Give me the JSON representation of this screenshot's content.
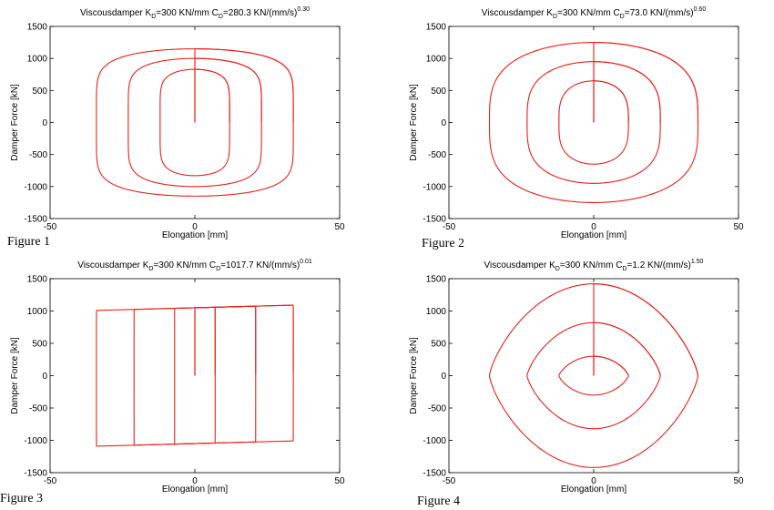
{
  "figures": [
    {
      "caption": "Figure 1"
    },
    {
      "caption": "Figure 2"
    },
    {
      "caption": "Figure 3"
    },
    {
      "caption": "Figure 4"
    }
  ],
  "chart_data": [
    {
      "type": "line",
      "title_parts": {
        "pre": "Viscousdamper K",
        "sub1": "D",
        "mid": "=300 KN/mm C",
        "sub2": "D",
        "post": "=280.3 KN/(mm/s)",
        "sup": "0.30"
      },
      "xlabel": "Elongation [mm]",
      "ylabel": "Damper Force [kN]",
      "xlim": [
        -50,
        50
      ],
      "ylim": [
        -1500,
        1500
      ],
      "xticks": [
        -50,
        0,
        50
      ],
      "yticks": [
        -1500,
        -1000,
        -500,
        0,
        500,
        1000,
        1500
      ],
      "grid": false,
      "color": "#e8201b",
      "loops": [
        {
          "amp": 12,
          "force": 830,
          "p": 0.3
        },
        {
          "amp": 23,
          "force": 1000,
          "p": 0.3
        },
        {
          "amp": 34,
          "force": 1150,
          "p": 0.3
        }
      ]
    },
    {
      "type": "line",
      "title_parts": {
        "pre": "Viscousdamper K",
        "sub1": "D",
        "mid": "=300 KN/mm C",
        "sub2": "D",
        "post": "=73.0 KN/(mm/s)",
        "sup": "0.60"
      },
      "xlabel": "Elongation [mm]",
      "ylabel": "Damper Force [kN]",
      "xlim": [
        -50,
        50
      ],
      "ylim": [
        -1500,
        1500
      ],
      "xticks": [
        -50,
        0,
        50
      ],
      "yticks": [
        -1500,
        -1000,
        -500,
        0,
        500,
        1000,
        1500
      ],
      "grid": false,
      "color": "#e8201b",
      "loops": [
        {
          "amp": 12,
          "force": 650,
          "p": 0.6
        },
        {
          "amp": 23,
          "force": 950,
          "p": 0.6
        },
        {
          "amp": 36,
          "force": 1250,
          "p": 0.6
        }
      ]
    },
    {
      "type": "line",
      "title_parts": {
        "pre": "Viscousdamper K",
        "sub1": "D",
        "mid": "=300 KN/mm C",
        "sub2": "D",
        "post": "=1017.7 KN/(mm/s)",
        "sup": "0.01"
      },
      "xlabel": "Elongation [mm]",
      "ylabel": "Damper Force [kN]",
      "xlim": [
        -50,
        50
      ],
      "ylim": [
        -1500,
        1500
      ],
      "xticks": [
        -50,
        0,
        50
      ],
      "yticks": [
        -1500,
        -1000,
        -500,
        0,
        500,
        1000,
        1500
      ],
      "grid": false,
      "color": "#e8201b",
      "loops": [
        {
          "amp": 7,
          "force": 1050,
          "p": 0.01
        },
        {
          "amp": 21,
          "force": 1050,
          "p": 0.01
        },
        {
          "amp": 34,
          "force": 1050,
          "p": 0.01
        }
      ]
    },
    {
      "type": "line",
      "title_parts": {
        "pre": "Viscousdamper K",
        "sub1": "D",
        "mid": "=300 KN/mm C",
        "sub2": "D",
        "post": "=1.2 KN/(mm/s)",
        "sup": "1.50"
      },
      "xlabel": "Elongation [mm]",
      "ylabel": "Damper Force [kN]",
      "xlim": [
        -50,
        50
      ],
      "ylim": [
        -1500,
        1500
      ],
      "xticks": [
        -50,
        0,
        50
      ],
      "yticks": [
        -1500,
        -1000,
        -500,
        0,
        500,
        1000,
        1500
      ],
      "grid": false,
      "color": "#e8201b",
      "loops": [
        {
          "amp": 12,
          "force": 300,
          "p": 1.5
        },
        {
          "amp": 23,
          "force": 820,
          "p": 1.5
        },
        {
          "amp": 36,
          "force": 1420,
          "p": 1.5
        }
      ]
    }
  ]
}
